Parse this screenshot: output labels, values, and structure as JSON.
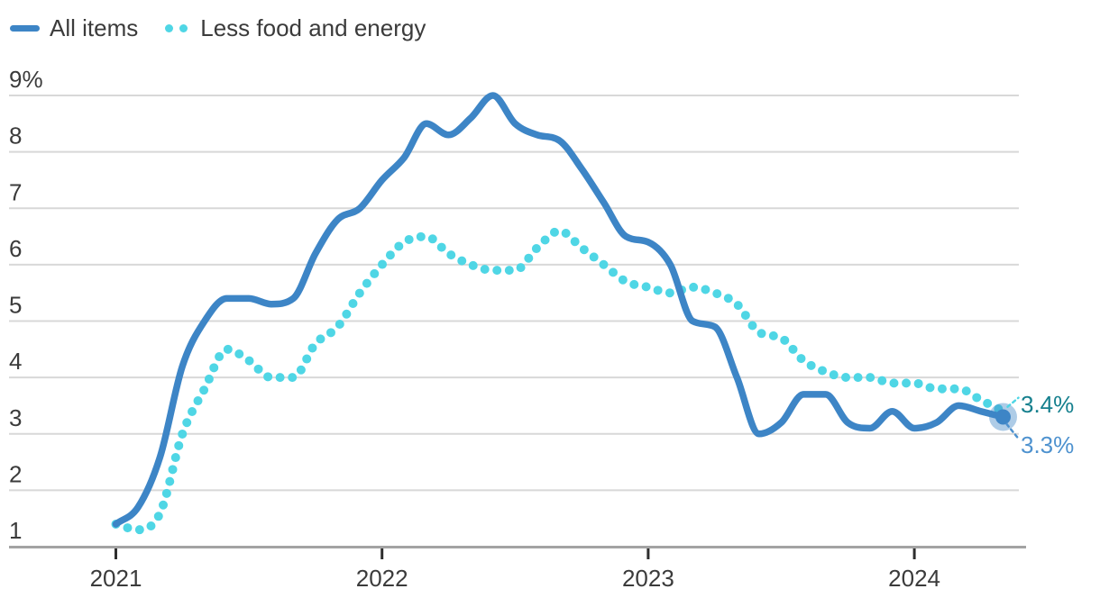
{
  "chart_data": {
    "type": "line",
    "title": "",
    "xlabel": "",
    "ylabel": "",
    "x_unit": "month",
    "x_range": "January 2021 to May 2024",
    "months_count": 41,
    "x_tick_labels": [
      "2021",
      "2022",
      "2023",
      "2024"
    ],
    "x_tick_month_index": [
      0,
      12,
      24,
      36
    ],
    "y_ticks": {
      "values": [
        9,
        8,
        7,
        6,
        5,
        4,
        3,
        2,
        1
      ],
      "labels": [
        "9%",
        "8",
        "7",
        "6",
        "5",
        "4",
        "3",
        "2",
        "1"
      ]
    },
    "ylim": [
      1,
      9
    ],
    "grid": "horizontal",
    "legend_position": "top-left",
    "series": [
      {
        "name": "All items",
        "style": "solid",
        "color": "#3d85c6",
        "values": [
          1.4,
          1.7,
          2.6,
          4.2,
          5.0,
          5.4,
          5.4,
          5.3,
          5.4,
          6.2,
          6.8,
          7.0,
          7.5,
          7.9,
          8.5,
          8.3,
          8.6,
          9.0,
          8.5,
          8.3,
          8.2,
          7.7,
          7.1,
          6.5,
          6.4,
          6.0,
          5.0,
          4.9,
          4.0,
          3.0,
          3.2,
          3.7,
          3.7,
          3.2,
          3.1,
          3.4,
          3.1,
          3.2,
          3.5,
          3.4,
          3.3
        ]
      },
      {
        "name": "Less food and energy",
        "style": "dotted",
        "color": "#4fd6e5",
        "values": [
          1.4,
          1.3,
          1.6,
          3.0,
          3.8,
          4.5,
          4.3,
          4.0,
          4.0,
          4.6,
          4.9,
          5.5,
          6.0,
          6.4,
          6.5,
          6.2,
          6.0,
          5.9,
          5.9,
          6.3,
          6.6,
          6.3,
          6.0,
          5.7,
          5.6,
          5.5,
          5.6,
          5.5,
          5.3,
          4.8,
          4.7,
          4.3,
          4.1,
          4.0,
          4.0,
          3.9,
          3.9,
          3.8,
          3.8,
          3.6,
          3.4
        ]
      }
    ],
    "end_labels": [
      {
        "series": "Less food and energy",
        "label": "3.4%",
        "value": 3.4,
        "color": "#16808e"
      },
      {
        "series": "All items",
        "label": "3.3%",
        "value": 3.3,
        "color": "#4e92cf"
      }
    ],
    "annotations": {
      "endpoint_marker": "large translucent blue dot on last All items point",
      "leader_lines": "short dashed diagonals from line ends to value labels"
    }
  },
  "colors": {
    "grid": "#d8d8d8",
    "axis": "#a3a3a3",
    "tick": "#2e2e2e",
    "text": "#3b3b3b",
    "background": "#ffffff"
  }
}
